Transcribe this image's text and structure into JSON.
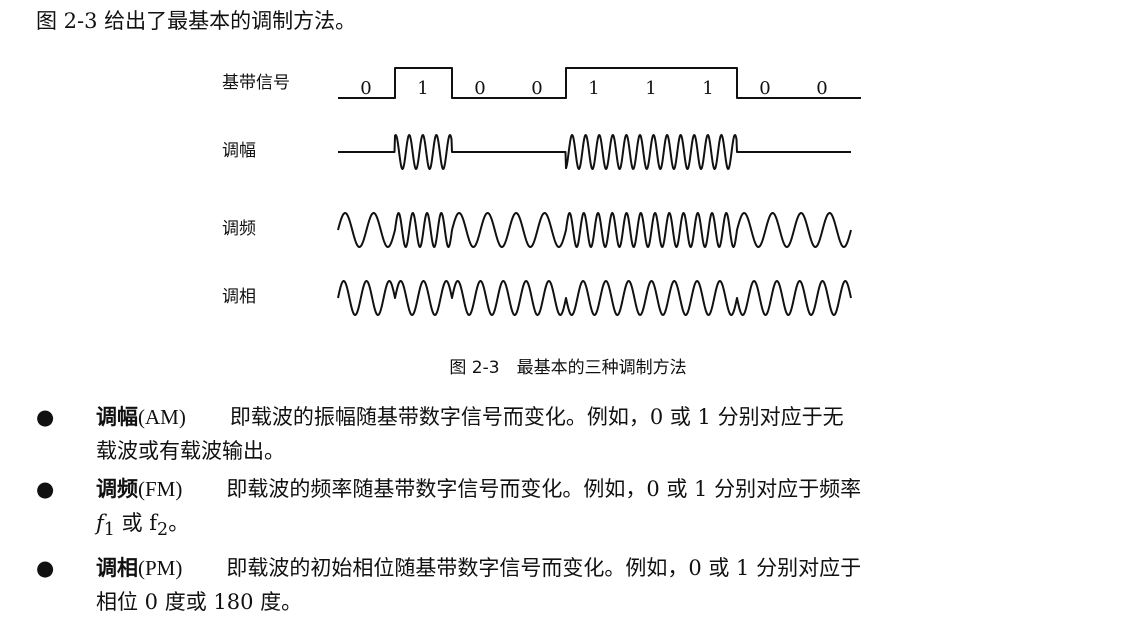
{
  "intro": "图 2-3 给出了最基本的调制方法。",
  "figure": {
    "labels": {
      "baseband": "基带信号",
      "am": "调幅",
      "fm": "调频",
      "pm": "调相"
    },
    "bits": [
      "0",
      "1",
      "0",
      "0",
      "1",
      "1",
      "1",
      "0",
      "0"
    ],
    "caption": "图 2-3　最基本的三种调制方法"
  },
  "items": [
    {
      "bullet": "●",
      "term": "调幅",
      "abbr": "(AM)",
      "line1": "即载波的振幅随基带数字信号而变化。例如，0 或 1 分别对应于无",
      "line2": "载波或有载波输出。"
    },
    {
      "bullet": "●",
      "term": "调频",
      "abbr": "(FM)",
      "line1": "即载波的频率随基带数字信号而变化。例如，0 或 1 分别对应于频率",
      "line2_pre": "f",
      "line2_sub1": "1",
      "line2_mid": " 或 f",
      "line2_sub2": "2",
      "line2_post": "。"
    },
    {
      "bullet": "●",
      "term": "调相",
      "abbr": "(PM)",
      "line1": "即载波的初始相位随基带数字信号而变化。例如，0 或 1 分别对应于",
      "line2": "相位 0 度或 180 度。"
    }
  ]
}
